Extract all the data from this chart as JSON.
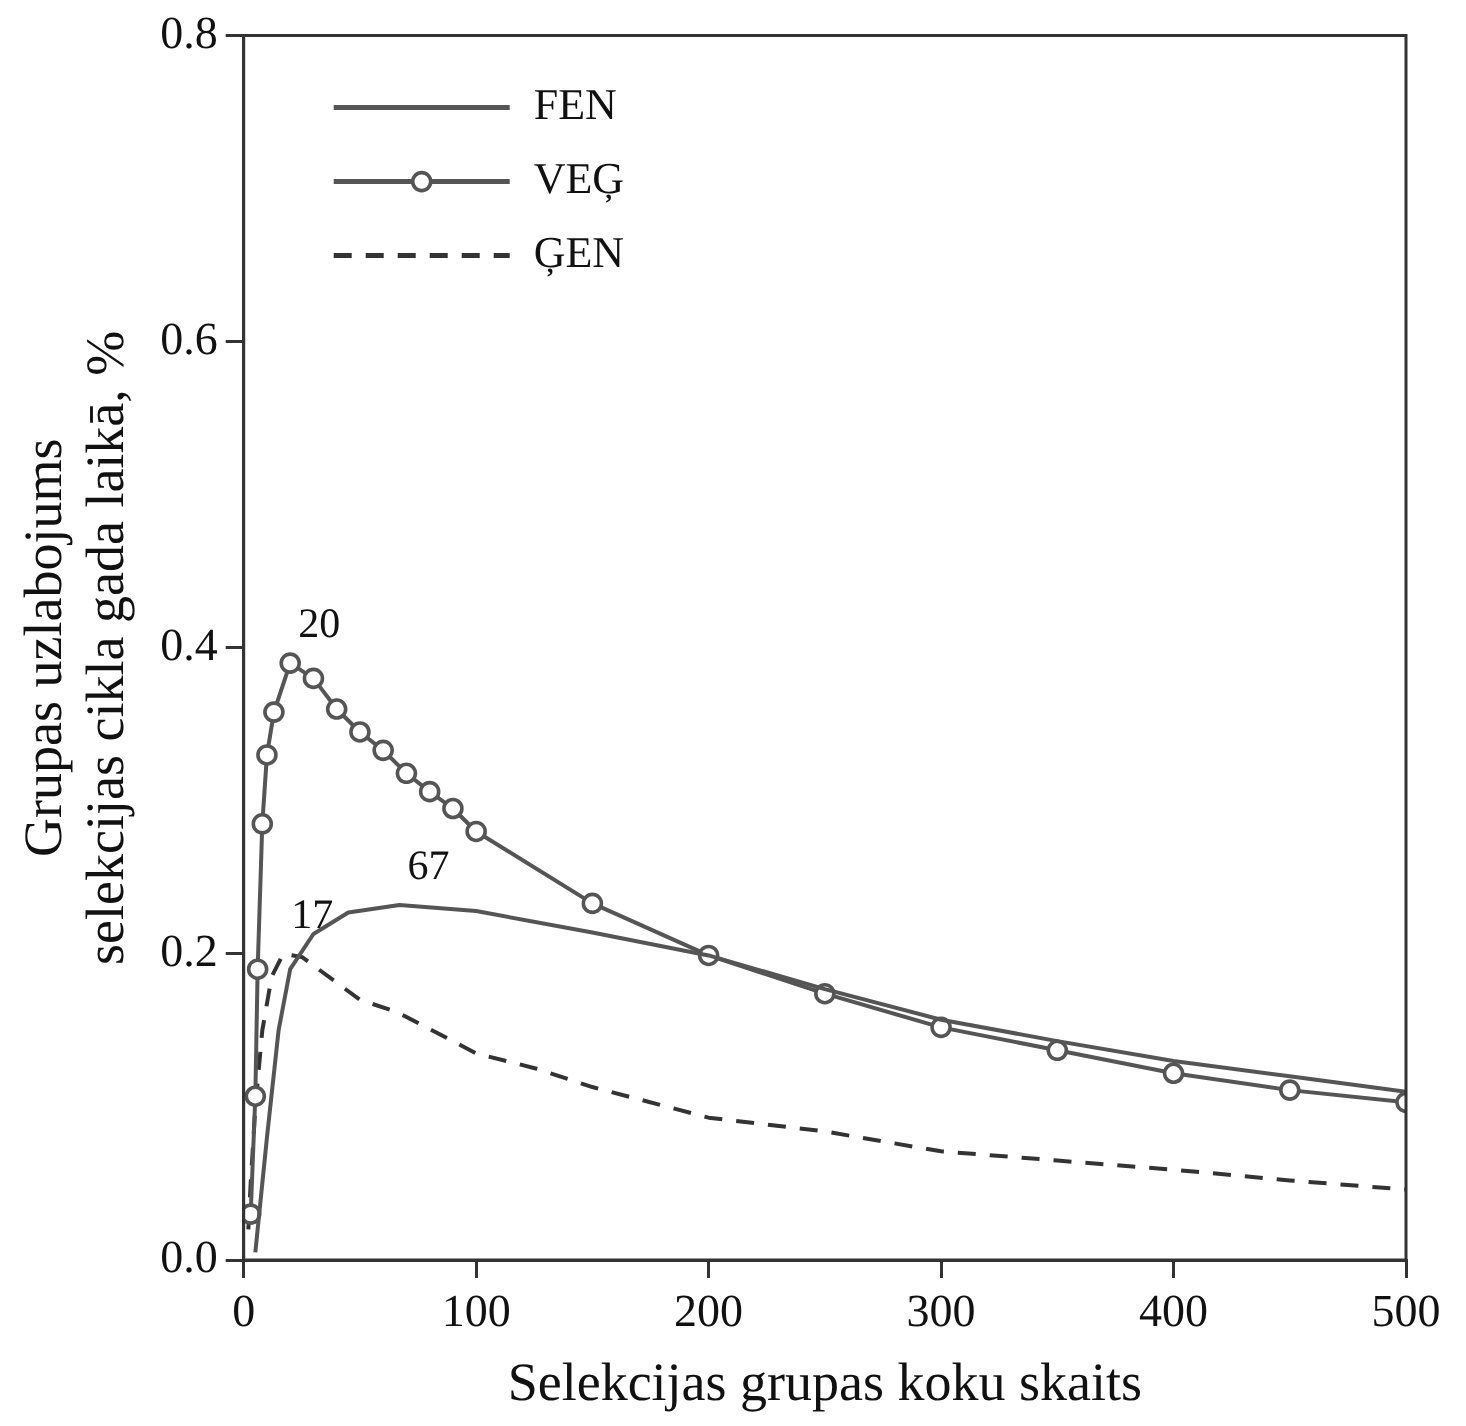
{
  "chart_data": {
    "type": "line",
    "xlabel": "Selekcijas grupas koku skaits",
    "ylabel": "Grupas uzlabojums\nselekcijas cikla gada laikā, %",
    "xlim": [
      0,
      500
    ],
    "xticks": [
      0,
      100,
      200,
      300,
      400,
      500
    ],
    "ylim": [
      0,
      0.8
    ],
    "yticks": [
      {
        "value": 0,
        "label": "0.0"
      },
      {
        "value": 0.2,
        "label": "0.2"
      },
      {
        "value": 0.4,
        "label": "0.4"
      },
      {
        "value": 0.6,
        "label": "0.6"
      },
      {
        "value": 0.8,
        "label": "0.8"
      }
    ],
    "grid": false,
    "legend": "top left",
    "series": [
      {
        "name": "FEN",
        "color": "#555555",
        "marker": "none",
        "line_style": "solid",
        "x": [
          5,
          10,
          15,
          20,
          30,
          45,
          67,
          100,
          150,
          200,
          250,
          300,
          350,
          400,
          450,
          500
        ],
        "values": [
          0.005,
          0.08,
          0.15,
          0.19,
          0.213,
          0.227,
          0.232,
          0.228,
          0.214,
          0.199,
          0.177,
          0.157,
          0.143,
          0.13,
          0.12,
          0.11
        ]
      },
      {
        "name": "VEĢ",
        "color": "#555555",
        "marker": "circle",
        "line_style": "solid",
        "x": [
          3,
          5,
          6,
          8,
          10,
          13,
          20,
          30,
          40,
          50,
          60,
          70,
          80,
          90,
          100,
          150,
          200,
          250,
          300,
          350,
          400,
          450,
          500
        ],
        "values": [
          0.03,
          0.107,
          0.19,
          0.285,
          0.33,
          0.358,
          0.39,
          0.38,
          0.36,
          0.345,
          0.333,
          0.318,
          0.306,
          0.295,
          0.28,
          0.233,
          0.199,
          0.174,
          0.152,
          0.137,
          0.122,
          0.111,
          0.103
        ]
      },
      {
        "name": "ĢEN",
        "color": "#333333",
        "marker": "none",
        "line_style": "dashed",
        "x": [
          2,
          3,
          5,
          8,
          12,
          17,
          25,
          50,
          66,
          100,
          126,
          150,
          200,
          250,
          300,
          350,
          400,
          450,
          500
        ],
        "values": [
          0.02,
          0.05,
          0.1,
          0.15,
          0.185,
          0.2,
          0.198,
          0.17,
          0.162,
          0.135,
          0.125,
          0.113,
          0.093,
          0.084,
          0.071,
          0.065,
          0.059,
          0.052,
          0.046
        ]
      }
    ],
    "annotations": [
      {
        "text": "20",
        "x": 20,
        "y": 0.39
      },
      {
        "text": "17",
        "x": 17,
        "y": 0.2
      },
      {
        "text": "67",
        "x": 67,
        "y": 0.232
      }
    ]
  }
}
